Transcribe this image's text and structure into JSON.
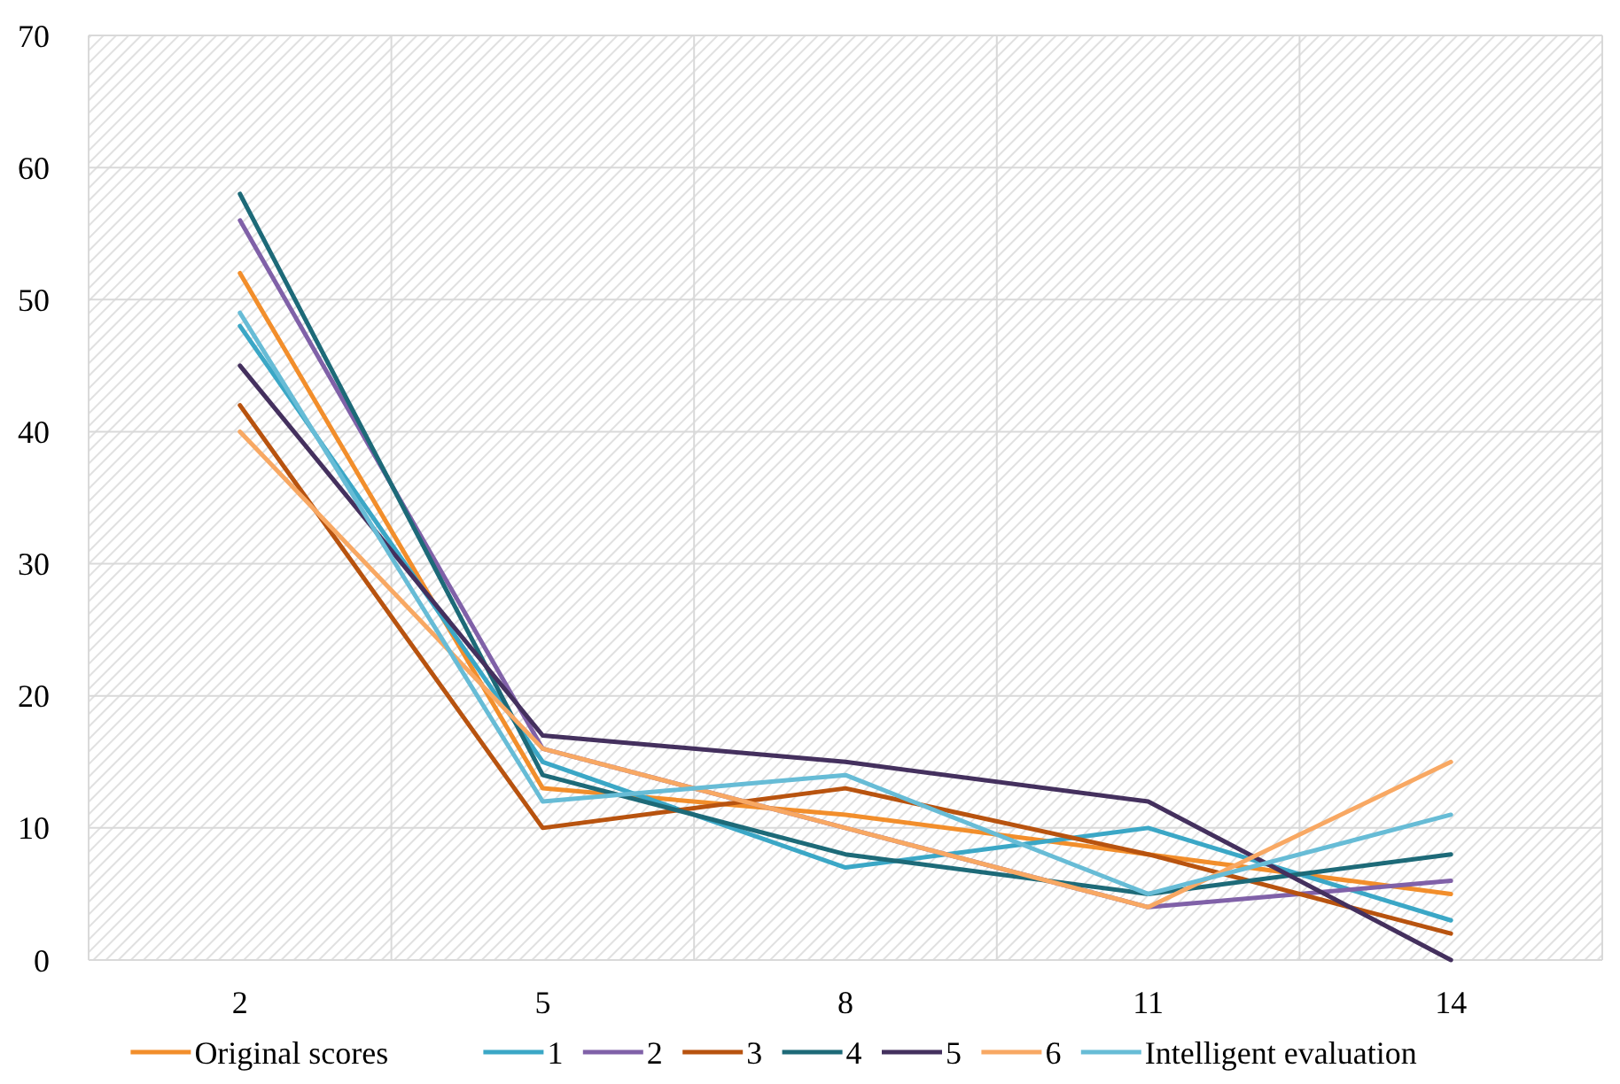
{
  "chart_data": {
    "type": "line",
    "categories": [
      "2",
      "5",
      "8",
      "11",
      "14"
    ],
    "ylim": [
      0,
      70
    ],
    "yticks": [
      0,
      10,
      20,
      30,
      40,
      50,
      60,
      70
    ],
    "grid": true,
    "legend": "bottom",
    "marker": "none",
    "line_style": "solid",
    "series": [
      {
        "name": "Original scores",
        "color": "#f28e2b",
        "values": [
          52,
          13,
          11,
          8,
          5
        ]
      },
      {
        "name": "1",
        "color": "#3ba7c6",
        "values": [
          48,
          15,
          7,
          10,
          3
        ]
      },
      {
        "name": "2",
        "color": "#8061a8",
        "values": [
          56,
          16,
          10,
          4,
          6
        ]
      },
      {
        "name": "3",
        "color": "#b8530f",
        "values": [
          42,
          10,
          13,
          8,
          2
        ]
      },
      {
        "name": "4",
        "color": "#1d6a78",
        "values": [
          58,
          14,
          8,
          5,
          8
        ]
      },
      {
        "name": "5",
        "color": "#44305e",
        "values": [
          45,
          17,
          15,
          12,
          0
        ]
      },
      {
        "name": "6",
        "color": "#f8a863",
        "values": [
          40,
          16,
          10,
          4,
          15
        ]
      },
      {
        "name": "Intelligent evaluation",
        "color": "#67bcd6",
        "values": [
          49,
          12,
          14,
          5,
          11
        ]
      }
    ]
  }
}
